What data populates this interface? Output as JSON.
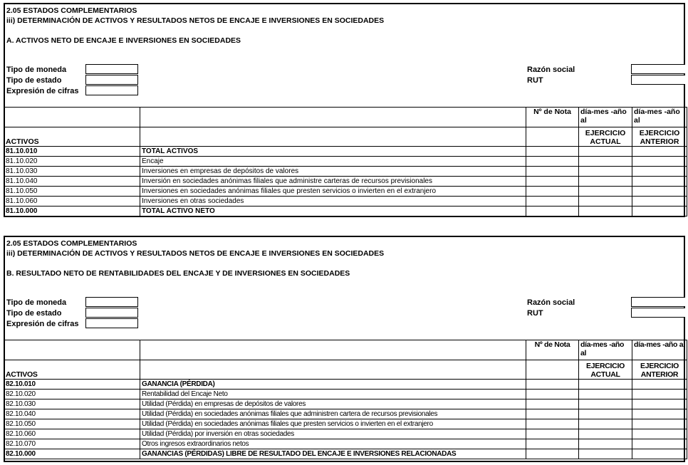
{
  "sections": [
    {
      "line1": "2.05 ESTADOS COMPLEMENTARIOS",
      "line2": "iii) DETERMINACIÓN DE ACTIVOS Y RESULTADOS NETOS DE ENCAJE E INVERSIONES EN SOCIEDADES",
      "subtitle": "A. ACTIVOS NETO DE ENCAJE E INVERSIONES EN SOCIEDADES",
      "fields_left": [
        {
          "label": "Tipo de moneda",
          "value": ""
        },
        {
          "label": "Tipo de estado",
          "value": ""
        },
        {
          "label": "Expresión de cifras",
          "value": ""
        }
      ],
      "fields_right": [
        {
          "label": "Razón social",
          "value": ""
        },
        {
          "label": "RUT",
          "value": ""
        }
      ],
      "header": {
        "col1": "ACTIVOS",
        "nota": "Nº de Nota",
        "date_actual": "día-mes -año al",
        "date_anterior": "día-mes -año al",
        "actual": "EJERCICIO ACTUAL",
        "anterior": "EJERCICIO ANTERIOR"
      },
      "rows": [
        {
          "code": "81.10.010",
          "desc": "TOTAL ACTIVOS",
          "bold": true
        },
        {
          "code": "81.10.020",
          "desc": "Encaje",
          "bold": false
        },
        {
          "code": "81.10.030",
          "desc": "Inversiones en empresas de depósitos de valores",
          "bold": false
        },
        {
          "code": "81.10.040",
          "desc": "Inversión en sociedades anónimas filiales que administre carteras de recursos previsionales",
          "bold": false
        },
        {
          "code": "81.10.050",
          "desc": "Inversiones en sociedades anónimas filiales que presten servicios o invierten en el extranjero",
          "bold": false
        },
        {
          "code": "81.10.060",
          "desc": "Inversiones en otras sociedades",
          "bold": false
        },
        {
          "code": "81.10.000",
          "desc": "TOTAL ACTIVO NETO",
          "bold": true
        }
      ]
    },
    {
      "line1": "2.05 ESTADOS COMPLEMENTARIOS",
      "line2": "iii) DETERMINACIÓN DE ACTIVOS Y RESULTADOS NETOS DE ENCAJE E INVERSIONES EN SOCIEDADES",
      "subtitle": "B. RESULTADO NETO DE RENTABILIDADES DEL ENCAJE Y DE INVERSIONES EN SOCIEDADES",
      "fields_left": [
        {
          "label": "Tipo de moneda",
          "value": ""
        },
        {
          "label": "Tipo de estado",
          "value": ""
        },
        {
          "label": "Expresión de cifras",
          "value": ""
        }
      ],
      "fields_right": [
        {
          "label": "Razón social",
          "value": ""
        },
        {
          "label": "RUT",
          "value": ""
        }
      ],
      "header": {
        "col1": "ACTIVOS",
        "nota": "Nº de Nota",
        "date_actual": "día-mes -año al",
        "date_anterior": "día-mes -año al",
        "actual": "EJERCICIO ACTUAL",
        "anterior": "EJERCICIO ANTERIOR"
      },
      "rows": [
        {
          "code": "82.10.010",
          "desc": "GANANCIA (PÉRDIDA)",
          "bold": true
        },
        {
          "code": "82.10.020",
          "desc": "Rentabilidad del Encaje Neto",
          "bold": false
        },
        {
          "code": "82.10.030",
          "desc": "Utilidad (Pérdida) en empresas de depósitos de valores",
          "bold": false
        },
        {
          "code": "82.10.040",
          "desc": "Utilidad (Pérdida) en sociedades anónimas filiales que administren cartera de recursos previsionales",
          "bold": false
        },
        {
          "code": "82.10.050",
          "desc": "Utilidad (Pérdida) en sociedades anónimas filiales que presten servicios o invierten en el extranjero",
          "bold": false
        },
        {
          "code": "82.10.060",
          "desc": "Utilidad (Pérdida) por inversión en otras sociedades",
          "bold": false
        },
        {
          "code": "82.10.070",
          "desc": "Otros ingresos extraordinarios netos",
          "bold": false
        },
        {
          "code": "82.10.000",
          "desc": "GANANCIAS (PÉRDIDAS) LIBRE DE RESULTADO DEL ENCAJE E INVERSIONES RELACIONADAS",
          "bold": true
        }
      ]
    }
  ]
}
